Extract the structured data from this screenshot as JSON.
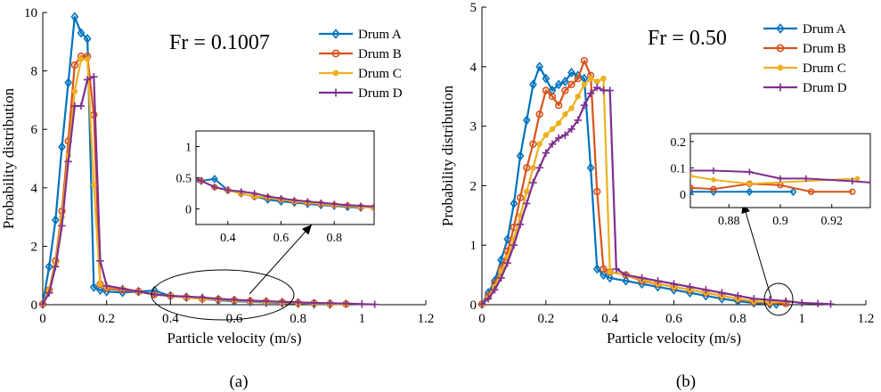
{
  "figure": {
    "captions": [
      "(a)",
      "(b)"
    ]
  },
  "chart_data": [
    {
      "type": "line",
      "panel": "(a)",
      "annotation": "Fr = 0.1007",
      "xlabel": "Particle velocity (m/s)",
      "ylabel": "Probability distribution",
      "xlim": [
        0,
        1.2
      ],
      "ylim": [
        0,
        10
      ],
      "xticks": [
        0,
        0.2,
        0.4,
        0.6,
        0.8,
        1,
        1.2
      ],
      "xtick_labels": [
        "0",
        "0.2",
        "0.4",
        "0.6",
        "0.8",
        "1",
        "1.2"
      ],
      "yticks": [
        0,
        2,
        4,
        6,
        8,
        10
      ],
      "ytick_labels": [
        "0",
        "2",
        "4",
        "6",
        "8",
        "10"
      ],
      "legend_position": "top-right",
      "series": [
        {
          "name": "Drum A",
          "color": "#0072BD",
          "marker": "diamond",
          "x": [
            0,
            0.02,
            0.04,
            0.06,
            0.08,
            0.1,
            0.12,
            0.14,
            0.16,
            0.18,
            0.2,
            0.25,
            0.3,
            0.35,
            0.4,
            0.45,
            0.5,
            0.55,
            0.6,
            0.65,
            0.7,
            0.75,
            0.8,
            0.85,
            0.9
          ],
          "y": [
            0.02,
            1.3,
            2.9,
            5.4,
            7.6,
            9.85,
            9.3,
            9.1,
            0.6,
            0.5,
            0.45,
            0.42,
            0.45,
            0.48,
            0.3,
            0.25,
            0.2,
            0.15,
            0.12,
            0.1,
            0.08,
            0.06,
            0.05,
            0.03,
            0.02
          ]
        },
        {
          "name": "Drum B",
          "color": "#D95319",
          "marker": "circle",
          "x": [
            0,
            0.02,
            0.04,
            0.06,
            0.08,
            0.1,
            0.12,
            0.14,
            0.16,
            0.18,
            0.2,
            0.25,
            0.3,
            0.35,
            0.4,
            0.45,
            0.5,
            0.55,
            0.6,
            0.65,
            0.7,
            0.75,
            0.8,
            0.85,
            0.9,
            0.95
          ],
          "y": [
            0.02,
            0.5,
            1.5,
            3.2,
            5.6,
            8.2,
            8.5,
            8.5,
            6.5,
            0.7,
            0.55,
            0.5,
            0.45,
            0.35,
            0.3,
            0.25,
            0.2,
            0.18,
            0.15,
            0.12,
            0.1,
            0.08,
            0.06,
            0.05,
            0.03,
            0.02
          ]
        },
        {
          "name": "Drum C",
          "color": "#EDB120",
          "marker": "dot",
          "x": [
            0,
            0.02,
            0.04,
            0.06,
            0.08,
            0.1,
            0.12,
            0.14,
            0.16,
            0.18,
            0.2,
            0.25,
            0.3,
            0.35,
            0.4,
            0.45,
            0.5,
            0.55,
            0.6,
            0.65,
            0.7,
            0.75,
            0.8,
            0.85,
            0.9,
            0.95
          ],
          "y": [
            0.02,
            0.5,
            1.4,
            3.0,
            5.1,
            7.3,
            8.4,
            8.4,
            4.1,
            0.7,
            0.6,
            0.55,
            0.45,
            0.35,
            0.3,
            0.25,
            0.2,
            0.18,
            0.15,
            0.12,
            0.1,
            0.08,
            0.06,
            0.05,
            0.03,
            0.02
          ]
        },
        {
          "name": "Drum D",
          "color": "#7E2F8E",
          "marker": "plus",
          "x": [
            0,
            0.02,
            0.04,
            0.06,
            0.08,
            0.1,
            0.12,
            0.14,
            0.16,
            0.18,
            0.2,
            0.25,
            0.3,
            0.35,
            0.4,
            0.45,
            0.5,
            0.55,
            0.6,
            0.65,
            0.7,
            0.75,
            0.8,
            0.85,
            0.9,
            0.95,
            1.0,
            1.04
          ],
          "y": [
            0.02,
            0.4,
            1.3,
            2.7,
            4.9,
            6.8,
            6.8,
            7.7,
            7.8,
            1.5,
            0.65,
            0.55,
            0.45,
            0.35,
            0.3,
            0.28,
            0.25,
            0.2,
            0.17,
            0.14,
            0.12,
            0.1,
            0.08,
            0.06,
            0.05,
            0.04,
            0.02,
            0.01
          ]
        }
      ],
      "inset": {
        "xlim": [
          0.28,
          0.95
        ],
        "ylim": [
          -0.25,
          1.25
        ],
        "xticks": [
          0.4,
          0.6,
          0.8
        ],
        "xtick_labels": [
          "0.4",
          "0.6",
          "0.8"
        ],
        "yticks": [
          0,
          0.5,
          1
        ],
        "ytick_labels": [
          "0",
          "0.5",
          "1"
        ]
      }
    },
    {
      "type": "line",
      "panel": "(b)",
      "annotation": "Fr = 0.50",
      "xlabel": "Particle velocity (m/s)",
      "ylabel": "Probability distribution",
      "xlim": [
        0,
        1.2
      ],
      "ylim": [
        0,
        5
      ],
      "xticks": [
        0,
        0.2,
        0.4,
        0.6,
        0.8,
        1,
        1.2
      ],
      "xtick_labels": [
        "0",
        "0.2",
        "0.4",
        "0.6",
        "0.8",
        "1",
        "1.2"
      ],
      "yticks": [
        0,
        1,
        2,
        3,
        4,
        5
      ],
      "ytick_labels": [
        "0",
        "1",
        "2",
        "3",
        "4",
        "5"
      ],
      "legend_position": "top-right",
      "series": [
        {
          "name": "Drum A",
          "color": "#0072BD",
          "marker": "diamond",
          "x": [
            0,
            0.02,
            0.04,
            0.06,
            0.08,
            0.1,
            0.12,
            0.14,
            0.16,
            0.18,
            0.2,
            0.22,
            0.24,
            0.26,
            0.28,
            0.3,
            0.32,
            0.34,
            0.36,
            0.38,
            0.4,
            0.45,
            0.5,
            0.55,
            0.6,
            0.65,
            0.7,
            0.75,
            0.8,
            0.85,
            0.9,
            0.92
          ],
          "y": [
            0.01,
            0.2,
            0.4,
            0.75,
            1.1,
            1.7,
            2.5,
            3.1,
            3.7,
            4.0,
            3.8,
            3.6,
            3.7,
            3.75,
            3.9,
            3.85,
            3.8,
            2.3,
            0.6,
            0.5,
            0.45,
            0.4,
            0.35,
            0.3,
            0.25,
            0.2,
            0.15,
            0.1,
            0.06,
            0.03,
            0.01,
            0.01
          ]
        },
        {
          "name": "Drum B",
          "color": "#D95319",
          "marker": "circle",
          "x": [
            0,
            0.02,
            0.04,
            0.06,
            0.08,
            0.1,
            0.12,
            0.14,
            0.16,
            0.18,
            0.2,
            0.22,
            0.24,
            0.26,
            0.28,
            0.3,
            0.32,
            0.34,
            0.36,
            0.38,
            0.4,
            0.45,
            0.5,
            0.55,
            0.6,
            0.65,
            0.7,
            0.75,
            0.8,
            0.85,
            0.9,
            0.95
          ],
          "y": [
            0.01,
            0.15,
            0.35,
            0.6,
            0.9,
            1.3,
            1.8,
            2.3,
            2.7,
            3.2,
            3.6,
            3.5,
            3.35,
            3.6,
            3.7,
            3.8,
            4.1,
            3.85,
            1.9,
            0.6,
            0.55,
            0.5,
            0.4,
            0.35,
            0.3,
            0.25,
            0.2,
            0.15,
            0.1,
            0.05,
            0.03,
            0.02
          ]
        },
        {
          "name": "Drum C",
          "color": "#EDB120",
          "marker": "dot",
          "x": [
            0,
            0.02,
            0.04,
            0.06,
            0.08,
            0.1,
            0.12,
            0.14,
            0.16,
            0.18,
            0.2,
            0.22,
            0.24,
            0.26,
            0.28,
            0.3,
            0.32,
            0.34,
            0.36,
            0.38,
            0.4,
            0.45,
            0.5,
            0.55,
            0.6,
            0.65,
            0.7,
            0.75,
            0.8,
            0.85,
            0.9,
            0.95
          ],
          "y": [
            0.01,
            0.12,
            0.3,
            0.55,
            0.8,
            1.1,
            1.5,
            1.9,
            2.3,
            2.7,
            2.85,
            2.95,
            3.05,
            3.2,
            3.3,
            3.5,
            3.7,
            3.8,
            3.75,
            3.8,
            0.55,
            0.5,
            0.42,
            0.35,
            0.3,
            0.25,
            0.2,
            0.15,
            0.1,
            0.06,
            0.04,
            0.05
          ]
        },
        {
          "name": "Drum D",
          "color": "#7E2F8E",
          "marker": "plus",
          "x": [
            0,
            0.02,
            0.04,
            0.06,
            0.08,
            0.1,
            0.12,
            0.14,
            0.16,
            0.18,
            0.2,
            0.22,
            0.24,
            0.26,
            0.28,
            0.3,
            0.32,
            0.34,
            0.36,
            0.38,
            0.4,
            0.42,
            0.45,
            0.5,
            0.55,
            0.6,
            0.65,
            0.7,
            0.75,
            0.8,
            0.85,
            0.9,
            0.95,
            1.0,
            1.05,
            1.09
          ],
          "y": [
            0.01,
            0.1,
            0.25,
            0.45,
            0.7,
            1.0,
            1.35,
            1.7,
            2.05,
            2.3,
            2.55,
            2.7,
            2.8,
            2.85,
            2.95,
            3.1,
            3.35,
            3.55,
            3.65,
            3.6,
            3.6,
            0.6,
            0.5,
            0.45,
            0.4,
            0.35,
            0.3,
            0.25,
            0.2,
            0.15,
            0.1,
            0.08,
            0.06,
            0.03,
            0.02,
            0.01
          ]
        }
      ],
      "inset": {
        "xlim": [
          0.865,
          0.935
        ],
        "ylim": [
          -0.05,
          0.23
        ],
        "xticks": [
          0.88,
          0.9,
          0.92
        ],
        "xtick_labels": [
          "0.88",
          "0.9",
          "0.92"
        ],
        "yticks": [
          0,
          0.1,
          0.2
        ],
        "ytick_labels": [
          "0",
          "0.1",
          "0.2"
        ],
        "series": [
          {
            "name": "Drum A",
            "x": [
              0.865,
              0.874,
              0.888,
              0.905
            ],
            "y": [
              0.01,
              0.01,
              0.01,
              0.01
            ]
          },
          {
            "name": "Drum B",
            "x": [
              0.865,
              0.874,
              0.888,
              0.9,
              0.912,
              0.928
            ],
            "y": [
              0.025,
              0.02,
              0.04,
              0.035,
              0.01,
              0.01
            ]
          },
          {
            "name": "Drum C",
            "x": [
              0.865,
              0.874,
              0.888,
              0.93
            ],
            "y": [
              0.07,
              0.055,
              0.04,
              0.06
            ]
          },
          {
            "name": "Drum D",
            "x": [
              0.865,
              0.874,
              0.888,
              0.9,
              0.91,
              0.928,
              0.935
            ],
            "y": [
              0.09,
              0.09,
              0.085,
              0.06,
              0.06,
              0.05,
              0.045
            ]
          }
        ]
      }
    }
  ]
}
